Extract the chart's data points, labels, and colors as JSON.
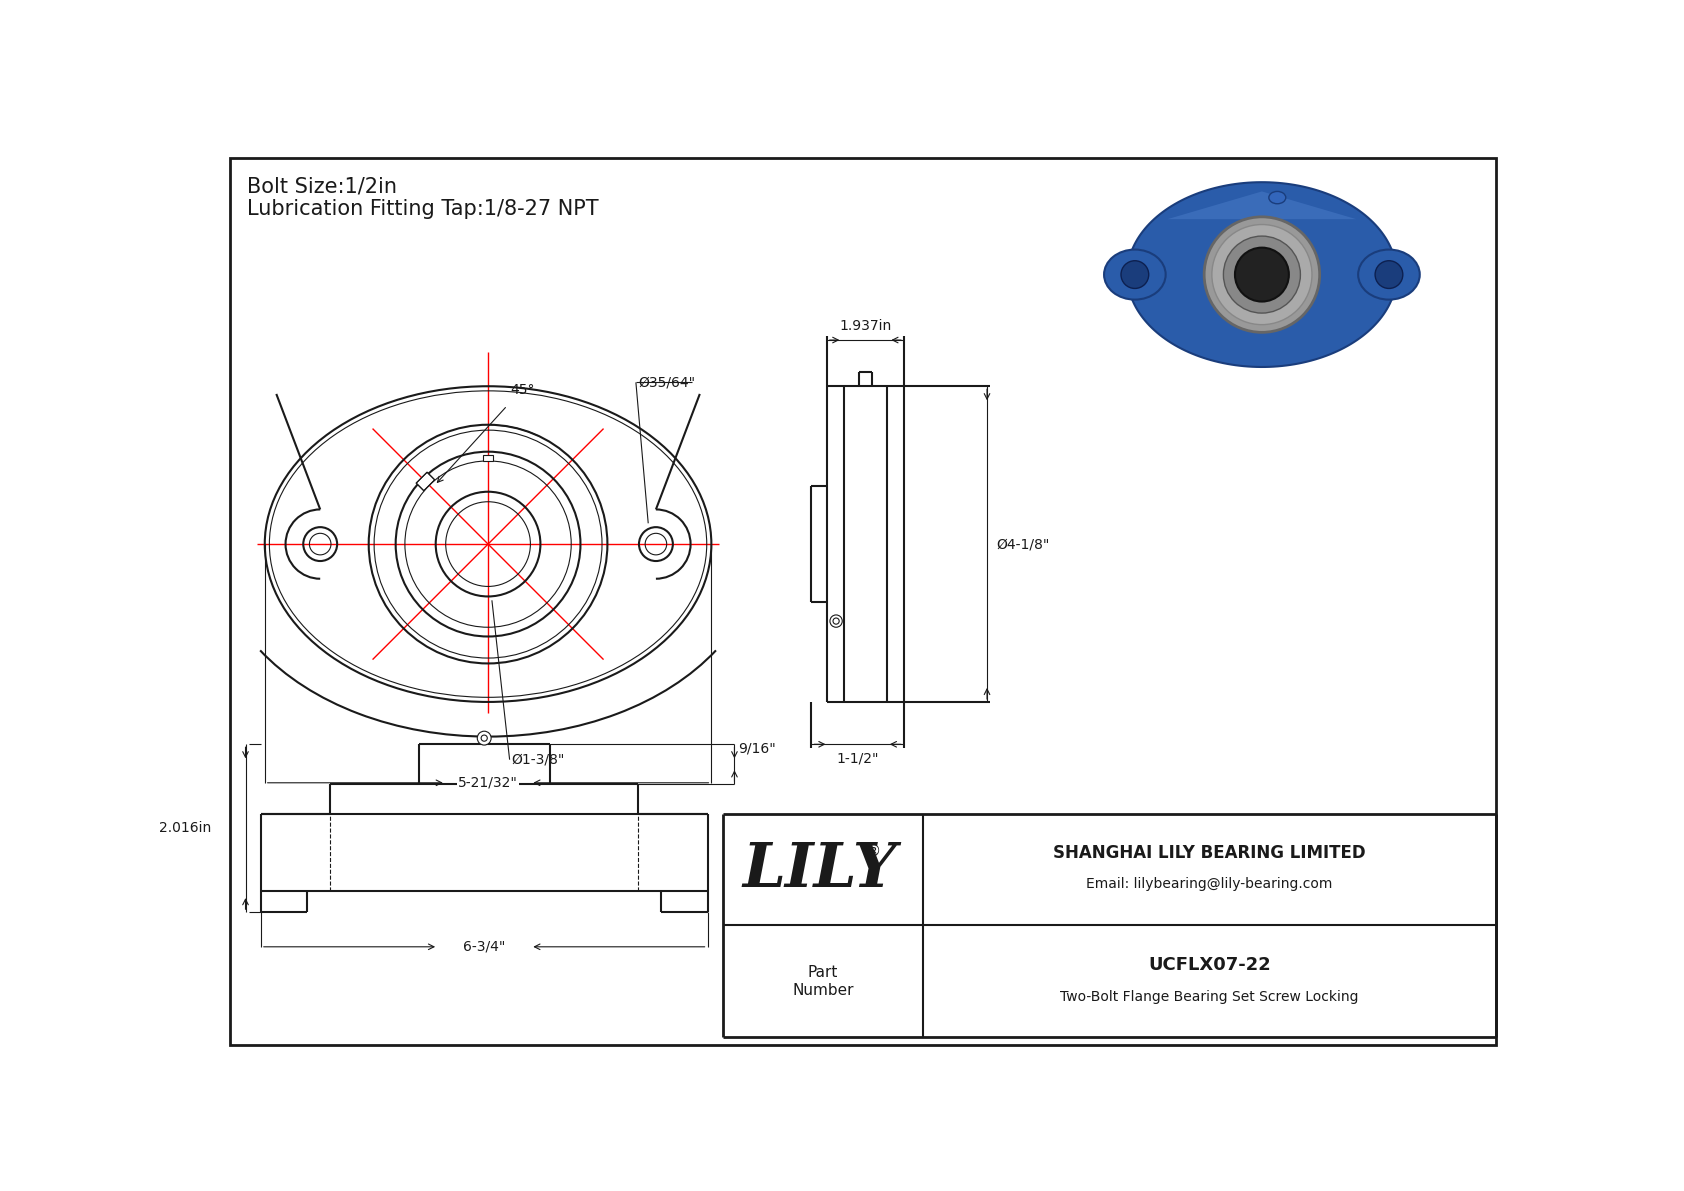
{
  "bg_color": "#ffffff",
  "line_color": "#1a1a1a",
  "red_color": "#ff0000",
  "title_line1": "Bolt Size:1/2in",
  "title_line2": "Lubrication Fitting Tap:1/8-27 NPT",
  "title_fontsize": 15,
  "dim_fontsize": 10,
  "company_name": "SHANGHAI LILY BEARING LIMITED",
  "company_email": "Email: lilybearing@lily-bearing.com",
  "part_label": "Part\nNumber",
  "part_number": "UCFLX07-22",
  "part_desc": "Two-Bolt Flange Bearing Set Screw Locking",
  "lily_text": "LILY",
  "dim_35_64": "Ø35/64\"",
  "dim_1_3_8": "Ø1-3/8\"",
  "dim_5_21_32": "5-21/32\"",
  "dim_4_1_8": "Ø4-1/8\"",
  "dim_1_937": "1.937in",
  "dim_1_1_2": "1-1/2\"",
  "dim_9_16": "9/16\"",
  "dim_2_016": "2.016in",
  "dim_6_3_4": "6-3/4\"",
  "dim_45deg": "45°"
}
